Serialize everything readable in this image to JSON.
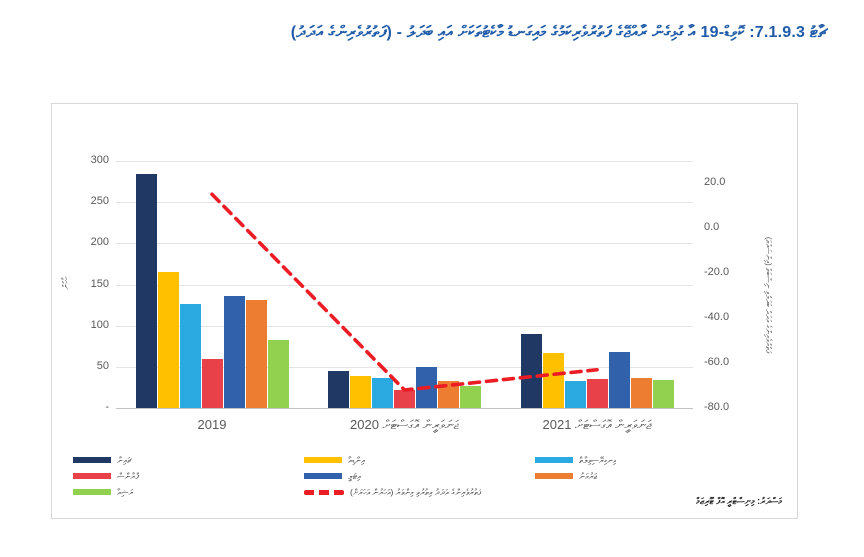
{
  "title": {
    "text": "ޗާޓު 7.1.9.3: ކޮވިޑް-19 އާ ގުޅިގެން ރާއްޖޭގެ ފަތުރުވެރިކަމުގެ މައިގަނޑު މާކެޓުތަކަށް އައި ބަދަލު - (ފަތުރުވެރިންގެ އަދަދު)"
  },
  "chart_data": {
    "type": "bar",
    "title": "ޗާޓު 7.1.9.3: ކޮވިޑް-19 އާ ގުޅިގެން ރާއްޖޭގެ ފަތުރުވެރިކަމުގެ މައިގަނޑު މާކެޓުތަކަށް އައި ބަދަލު - (ފަތުރުވެރިންގެ އަދަދު)",
    "categories": [
      "2019",
      "ޖަނަވަރީން އޮގަސްޓަށް 2020",
      "ޖަނަވަރީން އޮގަސްޓަށް 2021"
    ],
    "series": [
      {
        "name": "ޗައިނާ",
        "color": "#1f3864",
        "values": [
          284,
          45,
          90
        ]
      },
      {
        "name": "އިންޑިއާ",
        "color": "#ffc000",
        "values": [
          165,
          39,
          67
        ]
      },
      {
        "name": "އިނގިރޭސިވިލާތް",
        "color": "#2baae2",
        "values": [
          126,
          37,
          33
        ]
      },
      {
        "name": "ފްރާންސް",
        "color": "#e8414a",
        "values": [
          59,
          22,
          35
        ]
      },
      {
        "name": "އިޓަލީ",
        "color": "#3161ab",
        "values": [
          136,
          50,
          68
        ]
      },
      {
        "name": "ޖަރުމަނު",
        "color": "#ed7d31",
        "values": [
          131,
          33,
          37
        ]
      },
      {
        "name": "ރަޝިއާ",
        "color": "#92d050",
        "values": [
          83,
          27,
          34
        ]
      }
    ],
    "line_series": {
      "name": "ފަތުރުވެރިންގެ އަދަދު އިތުރުވި މިންވަރު (އަހަރުން އަހަރަށް)",
      "color": "#ec1c24",
      "style": "dashed",
      "axis": "right",
      "values": [
        15,
        -72,
        -63
      ]
    },
    "left_axis": {
      "title": "ހާހުން",
      "range": [
        0,
        300
      ],
      "ticks": [
        {
          "label": "300",
          "value": 300
        },
        {
          "label": "250",
          "value": 250
        },
        {
          "label": "200",
          "value": 200
        },
        {
          "label": "150",
          "value": 150
        },
        {
          "label": "100",
          "value": 100
        },
        {
          "label": "50",
          "value": 50
        },
        {
          "label": "-",
          "value": 0
        }
      ]
    },
    "right_axis": {
      "title": "ފަތުރުވެރިންގެ އަދަދު ބަދަލުވި ނިސްބަތް (އިންސައްތަ)",
      "range": [
        -80,
        20
      ],
      "ticks": [
        {
          "label": "20.0",
          "value": 20
        },
        {
          "label": "0.0",
          "value": 0
        },
        {
          "label": "-20.0",
          "value": -20
        },
        {
          "label": "-40.0",
          "value": -40
        },
        {
          "label": "-60.0",
          "value": -60
        },
        {
          "label": "-80.0",
          "value": -80
        }
      ]
    },
    "grid": true,
    "legend_position": "bottom"
  },
  "legend": {
    "columns": [
      [
        {
          "swatch": "bar",
          "color": "#1f3864",
          "label": "ޗައިނާ"
        },
        {
          "swatch": "bar",
          "color": "#e8414a",
          "label": "ފްރާންސް"
        },
        {
          "swatch": "bar",
          "color": "#92d050",
          "label": "ރަޝިއާ"
        }
      ],
      [
        {
          "swatch": "bar",
          "color": "#ffc000",
          "label": "އިންޑިއާ"
        },
        {
          "swatch": "bar",
          "color": "#3161ab",
          "label": "އިޓަލީ"
        },
        {
          "swatch": "dash",
          "color": "#ec1c24",
          "label": "ފަތުރުވެރިންގެ އަދަދު އިތުރުވި މިންވަރު (އަހަރުން އަހަރަށް)"
        }
      ],
      [
        {
          "swatch": "bar",
          "color": "#2baae2",
          "label": "އިނގިރޭސިވިލާތް"
        },
        {
          "swatch": "bar",
          "color": "#ed7d31",
          "label": "ޖަރުމަނު"
        }
      ]
    ]
  },
  "source": {
    "text": "މަސްދަރު: މިނިސްޓްރީ އޮފް ޓޫރިޒަމް"
  }
}
